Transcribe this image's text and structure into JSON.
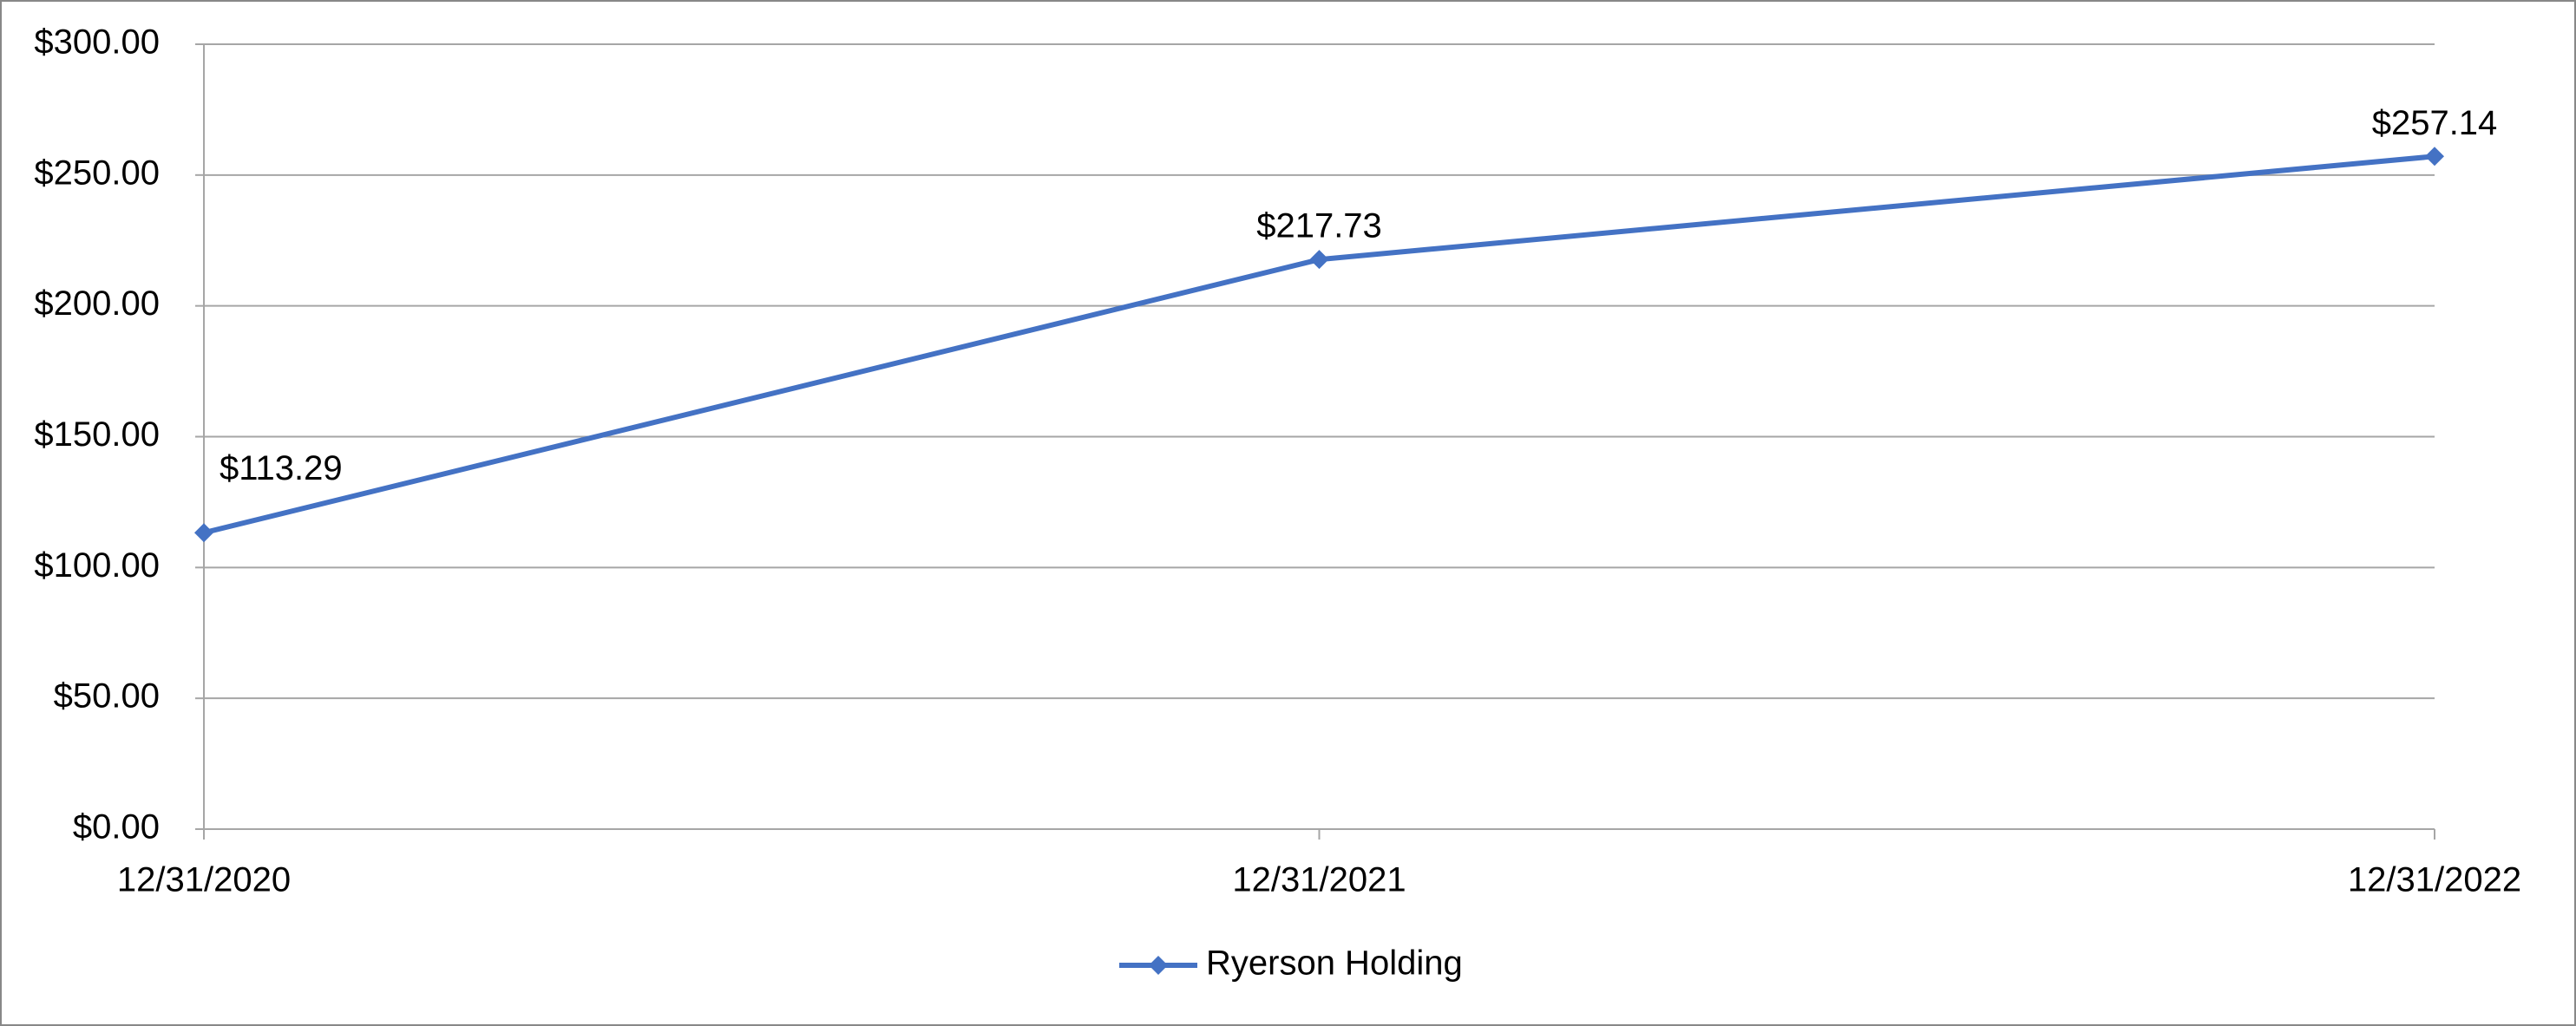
{
  "chart_data": {
    "type": "line",
    "categories": [
      "12/31/2020",
      "12/31/2021",
      "12/31/2022"
    ],
    "series": [
      {
        "name": "Ryerson Holding",
        "color": "#4472c4",
        "values": [
          113.29,
          217.73,
          257.14
        ],
        "value_labels": [
          "$113.29",
          "$217.73",
          "$257.14"
        ]
      }
    ],
    "ylim": [
      0,
      300
    ],
    "yticks": [
      {
        "value": 0,
        "label": "$0.00"
      },
      {
        "value": 50,
        "label": "$50.00"
      },
      {
        "value": 100,
        "label": "$100.00"
      },
      {
        "value": 150,
        "label": "$150.00"
      },
      {
        "value": 200,
        "label": "$200.00"
      },
      {
        "value": 250,
        "label": "$250.00"
      },
      {
        "value": 300,
        "label": "$300.00"
      }
    ],
    "grid": true,
    "legend": "bottom"
  }
}
